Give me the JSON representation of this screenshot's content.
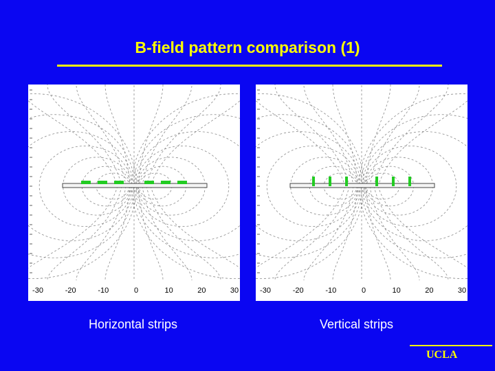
{
  "slide": {
    "title": "B-field pattern comparison (1)",
    "logo_text": "UCLA",
    "colors": {
      "background": "#0a06f2",
      "accent": "#ffff00",
      "strip": "#22cc22"
    }
  },
  "panels": [
    {
      "id": "left",
      "caption": "Horizontal strips",
      "strip_orientation": "horizontal",
      "strip_count": 6,
      "x_ticks": [
        "-30",
        "-20",
        "-10",
        "0",
        "10",
        "20",
        "30"
      ]
    },
    {
      "id": "right",
      "caption": "Vertical strips",
      "strip_orientation": "vertical",
      "strip_count": 6,
      "x_ticks": [
        "-30",
        "-20",
        "-10",
        "0",
        "10",
        "20",
        "30"
      ]
    }
  ]
}
